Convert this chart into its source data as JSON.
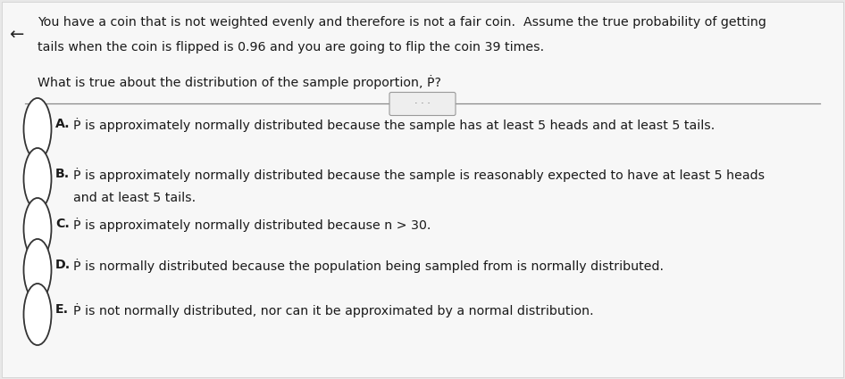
{
  "bg_color": "#e8e8e8",
  "panel_color": "#f7f7f7",
  "text_color": "#1a1a1a",
  "gray_text": "#555555",
  "paragraph1_line1": "You have a coin that is not weighted evenly and therefore is not a fair coin.  Assume the true probability of getting",
  "paragraph1_line2": "tails when the coin is flipped is 0.96 and you are going to flip the coin 39 times.",
  "paragraph2": "What is true about the distribution of the sample proportion, Ṗ?",
  "divider_color": "#888888",
  "dot_text": "· · ·",
  "options": [
    {
      "label": "A.",
      "text_line1": "Ṗ is approximately normally distributed because the sample has at least 5 heads and at least 5 tails.",
      "text_line2": ""
    },
    {
      "label": "B.",
      "text_line1": "Ṗ is approximately normally distributed because the sample is reasonably expected to have at least 5 heads",
      "text_line2": "and at least 5 tails."
    },
    {
      "label": "C.",
      "text_line1": "Ṗ is approximately normally distributed because n > 30.",
      "text_line2": ""
    },
    {
      "label": "D.",
      "text_line1": "Ṗ is normally distributed because the population being sampled from is normally distributed.",
      "text_line2": ""
    },
    {
      "label": "E.",
      "text_line1": "Ṗ is not normally distributed, nor can it be approximated by a normal distribution.",
      "text_line2": ""
    }
  ],
  "circle_facecolor": "#ffffff",
  "circle_edgecolor": "#333333",
  "circle_lw": 1.3,
  "label_bold": true,
  "font_size_body": 10.2,
  "font_size_label": 10.2
}
